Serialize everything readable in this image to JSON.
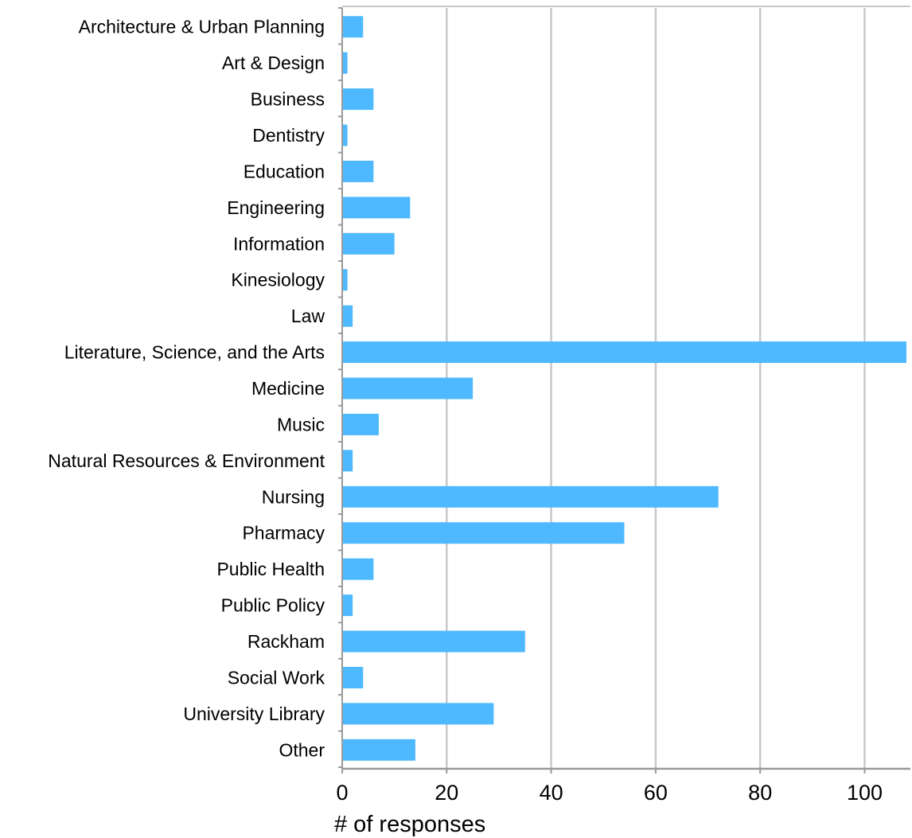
{
  "colors": {
    "bar": "#4FB9FF",
    "grid": "#c8c8c8",
    "axis": "#9a9a9a"
  },
  "chart_data": {
    "type": "bar",
    "orientation": "horizontal",
    "categories": [
      "Architecture & Urban Planning",
      "Art & Design",
      "Business",
      "Dentistry",
      "Education",
      "Engineering",
      "Information",
      "Kinesiology",
      "Law",
      "Literature, Science, and the Arts",
      "Medicine",
      "Music",
      "Natural Resources & Environment",
      "Nursing",
      "Pharmacy",
      "Public Health",
      "Public Policy",
      "Rackham",
      "Social Work",
      "University Library",
      "Other"
    ],
    "values": [
      4,
      1,
      6,
      1,
      6,
      13,
      10,
      1,
      2,
      108,
      25,
      7,
      2,
      72,
      54,
      6,
      2,
      35,
      4,
      29,
      14
    ],
    "xlabel": "# of responses",
    "xlim": [
      0,
      109
    ],
    "xticks": [
      "0",
      "20",
      "40",
      "60",
      "80",
      "100"
    ],
    "tick_values": [
      0,
      20,
      40,
      60,
      80,
      100
    ],
    "grid": true,
    "legend": "none"
  }
}
